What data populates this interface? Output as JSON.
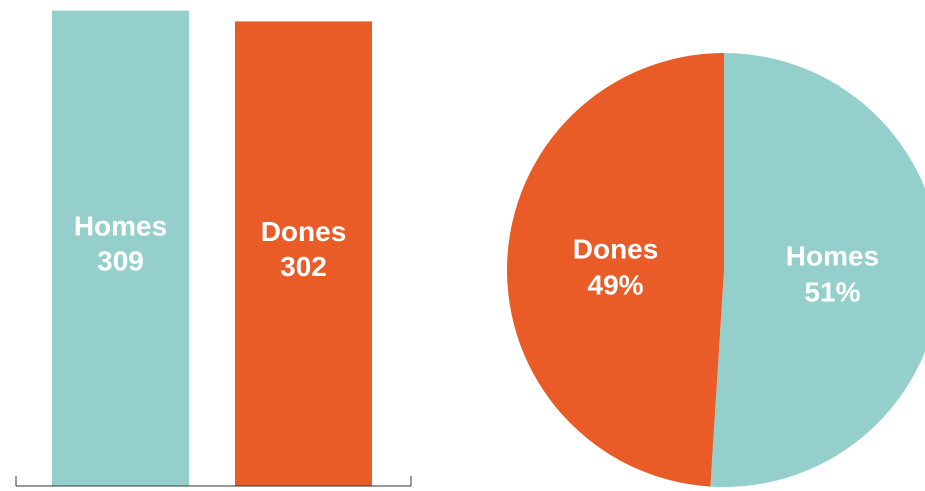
{
  "chart_data": [
    {
      "type": "bar",
      "categories": [
        "Homes",
        "Dones"
      ],
      "values": [
        309,
        302
      ],
      "colors": [
        "#94cfcc",
        "#e95c27"
      ],
      "ylim": [
        0,
        312
      ],
      "title": "",
      "xlabel": "",
      "ylabel": "",
      "grid": false
    },
    {
      "type": "pie",
      "labels": [
        "Homes",
        "Dones"
      ],
      "values": [
        51,
        49
      ],
      "value_labels": [
        "51%",
        "49%"
      ],
      "colors": [
        "#94cfcc",
        "#e95c27"
      ],
      "title": ""
    }
  ]
}
